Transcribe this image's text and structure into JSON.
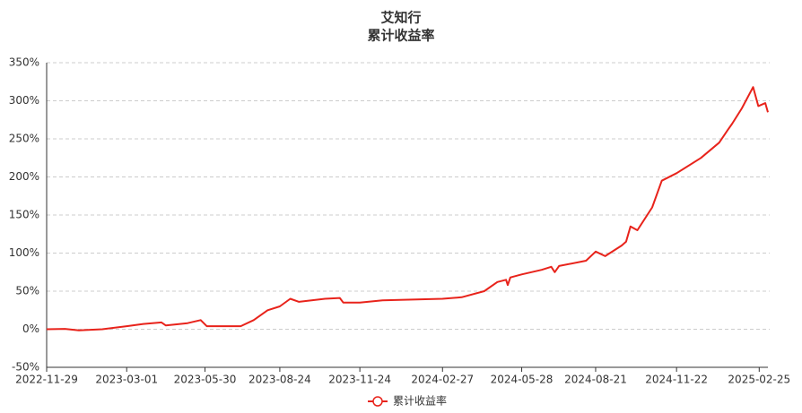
{
  "chart_data": {
    "type": "line",
    "title": "艾知行",
    "subtitle": "累计收益率",
    "x": [
      "2022-11-29",
      "2022-12-20",
      "2023-01-05",
      "2023-02-01",
      "2023-03-01",
      "2023-03-20",
      "2023-04-10",
      "2023-04-15",
      "2023-05-10",
      "2023-05-25",
      "2023-06-01",
      "2023-07-10",
      "2023-07-25",
      "2023-08-10",
      "2023-08-24",
      "2023-09-05",
      "2023-09-15",
      "2023-10-15",
      "2023-11-01",
      "2023-11-05",
      "2023-11-24",
      "2023-12-20",
      "2024-02-27",
      "2024-03-20",
      "2024-04-15",
      "2024-04-30",
      "2024-05-10",
      "2024-05-12",
      "2024-05-15",
      "2024-05-28",
      "2024-06-20",
      "2024-07-01",
      "2024-07-05",
      "2024-07-10",
      "2024-08-10",
      "2024-08-21",
      "2024-09-01",
      "2024-09-20",
      "2024-09-25",
      "2024-09-30",
      "2024-10-08",
      "2024-10-25",
      "2024-11-05",
      "2024-11-22",
      "2024-12-20",
      "2025-01-10",
      "2025-01-20",
      "2025-01-25",
      "2025-02-05",
      "2025-02-18",
      "2025-02-24",
      "2025-03-04",
      "2025-03-07"
    ],
    "series": [
      {
        "name": "累计收益率",
        "color": "#e8231b",
        "values": [
          0,
          0.5,
          -1.5,
          0,
          4,
          7,
          9,
          5,
          8,
          12,
          4,
          4,
          12,
          25,
          30,
          40,
          36,
          40,
          41,
          35,
          35,
          38,
          40,
          42,
          50,
          62,
          65,
          58,
          68,
          72,
          78,
          82,
          75,
          83,
          90,
          102,
          96,
          110,
          115,
          135,
          130,
          160,
          195,
          205,
          225,
          245,
          262,
          270,
          290,
          318,
          293,
          297,
          285
        ]
      }
    ],
    "xlim": [
      "2022-11-29",
      "2025-03-07"
    ],
    "xticks": [
      "2022-11-29",
      "2023-03-01",
      "2023-05-30",
      "2023-08-24",
      "2023-11-24",
      "2024-02-27",
      "2024-05-28",
      "2024-08-21",
      "2024-11-22",
      "2025-02-25"
    ],
    "ylim": [
      -50,
      350
    ],
    "yticks": [
      {
        "value": -50,
        "label": "-50%"
      },
      {
        "value": 0,
        "label": "0%"
      },
      {
        "value": 50,
        "label": "50%"
      },
      {
        "value": 100,
        "label": "100%"
      },
      {
        "value": 150,
        "label": "150%"
      },
      {
        "value": 200,
        "label": "200%"
      },
      {
        "value": 250,
        "label": "250%"
      },
      {
        "value": 300,
        "label": "300%"
      },
      {
        "value": 350,
        "label": "350%"
      }
    ],
    "grid": true
  }
}
